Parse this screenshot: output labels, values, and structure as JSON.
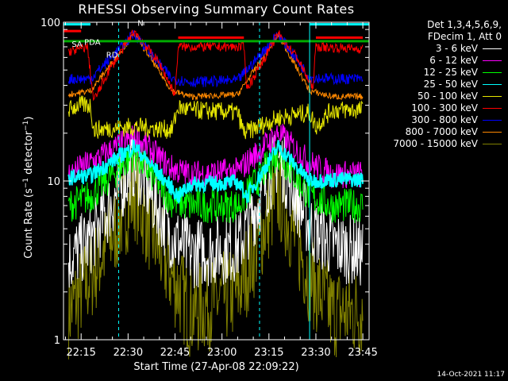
{
  "chart_data": {
    "type": "line",
    "title": "RHESSI Observing Summary Count Rates",
    "xlabel": "Start Time (27-Apr-08 22:09:22)",
    "ylabel_main": "Count Rate (s",
    "ylabel_sup": "−1",
    "ylabel_rest": " detector",
    "ylabel_close": ")",
    "y_scale": "log",
    "ylim": [
      1,
      100
    ],
    "y_ticks": [
      "1",
      "10",
      "100"
    ],
    "xlim": [
      "22:09:22",
      "23:47:00"
    ],
    "x_ticks": [
      "22:15",
      "22:30",
      "22:45",
      "23:00",
      "23:15",
      "23:30",
      "23:45"
    ],
    "grid": false,
    "legend_position": "right",
    "legend_header": [
      "Det 1,3,4,5,6,9,",
      "FDecim 1, Att 0"
    ],
    "annotations": [
      "RD",
      "SA",
      "N",
      "PDA"
    ],
    "series": [
      {
        "name": "3 - 6 keV",
        "color": "#ffffff",
        "key": [
          [
            "22:11",
            3.2
          ],
          [
            "22:18",
            4.2
          ],
          [
            "22:32",
            13
          ],
          [
            "22:44",
            4.5
          ],
          [
            "22:50",
            3.5
          ],
          [
            "23:05",
            3.8
          ],
          [
            "23:18",
            14
          ],
          [
            "23:28",
            5.2
          ],
          [
            "23:35",
            4
          ],
          [
            "23:45",
            3.5
          ]
        ]
      },
      {
        "name": "6 - 12 keV",
        "color": "#ff00ff",
        "key": [
          [
            "22:11",
            11
          ],
          [
            "22:18",
            13
          ],
          [
            "22:32",
            19
          ],
          [
            "22:44",
            12
          ],
          [
            "22:50",
            11
          ],
          [
            "23:05",
            11.5
          ],
          [
            "23:18",
            20
          ],
          [
            "23:28",
            13
          ],
          [
            "23:35",
            11
          ],
          [
            "23:45",
            11
          ]
        ]
      },
      {
        "name": "12 - 25 keV",
        "color": "#00ff00",
        "key": [
          [
            "22:11",
            7
          ],
          [
            "22:18",
            8
          ],
          [
            "22:32",
            15
          ],
          [
            "22:44",
            7.5
          ],
          [
            "22:50",
            7
          ],
          [
            "23:05",
            7
          ],
          [
            "23:18",
            15
          ],
          [
            "23:28",
            8
          ],
          [
            "23:35",
            7
          ],
          [
            "23:45",
            7
          ]
        ]
      },
      {
        "name": "25 - 50 keV",
        "color": "#00ffff",
        "key": [
          [
            "22:11",
            10.5
          ],
          [
            "22:18",
            10.8
          ],
          [
            "22:32",
            16.5
          ],
          [
            "22:44",
            9
          ],
          [
            "22:46",
            8
          ],
          [
            "22:50",
            9.5
          ],
          [
            "23:05",
            9.8
          ],
          [
            "23:08",
            8
          ],
          [
            "23:18",
            16.5
          ],
          [
            "23:28",
            10
          ],
          [
            "23:35",
            10.2
          ],
          [
            "23:45",
            10.2
          ]
        ]
      },
      {
        "name": "50 - 100 keV",
        "color": "#e6e600",
        "key": [
          [
            "22:11",
            28
          ],
          [
            "22:14",
            30
          ],
          [
            "22:18",
            30
          ],
          [
            "22:19",
            21
          ],
          [
            "22:32",
            22
          ],
          [
            "22:44",
            21
          ],
          [
            "22:46",
            29
          ],
          [
            "22:50",
            28
          ],
          [
            "23:05",
            27
          ],
          [
            "23:07",
            20
          ],
          [
            "23:18",
            25
          ],
          [
            "23:28",
            27
          ],
          [
            "23:30",
            22
          ],
          [
            "23:35",
            28
          ],
          [
            "23:45",
            28
          ]
        ]
      },
      {
        "name": "100 - 300 keV",
        "color": "#ff0000",
        "key": [
          [
            "22:11",
            65
          ],
          [
            "22:17",
            70
          ],
          [
            "22:19",
            32
          ],
          [
            "22:24",
            50
          ],
          [
            "22:32",
            88
          ],
          [
            "22:40",
            55
          ],
          [
            "22:45",
            35
          ],
          [
            "22:46",
            70
          ],
          [
            "23:07",
            70
          ],
          [
            "23:08",
            38
          ],
          [
            "23:18",
            85
          ],
          [
            "23:24",
            60
          ],
          [
            "23:29",
            38
          ],
          [
            "23:30",
            70
          ],
          [
            "23:45",
            68
          ]
        ]
      },
      {
        "name": "300 - 800 keV",
        "color": "#0000ff",
        "key": [
          [
            "22:11",
            44
          ],
          [
            "22:18",
            44
          ],
          [
            "22:32",
            85
          ],
          [
            "22:44",
            44
          ],
          [
            "22:50",
            42
          ],
          [
            "23:05",
            43
          ],
          [
            "23:18",
            84
          ],
          [
            "23:28",
            45
          ],
          [
            "23:35",
            44
          ],
          [
            "23:45",
            44
          ]
        ]
      },
      {
        "name": "800 - 7000 keV",
        "color": "#ff8800",
        "key": [
          [
            "22:11",
            35
          ],
          [
            "22:18",
            37
          ],
          [
            "22:32",
            85
          ],
          [
            "22:44",
            37
          ],
          [
            "22:50",
            34
          ],
          [
            "23:05",
            35
          ],
          [
            "23:18",
            83
          ],
          [
            "23:28",
            37
          ],
          [
            "23:35",
            34
          ],
          [
            "23:45",
            34
          ]
        ]
      },
      {
        "name": "7000 - 15000 keV",
        "color": "#808000",
        "key": [
          [
            "22:11",
            1.5
          ],
          [
            "22:18",
            2.5
          ],
          [
            "22:32",
            8.5
          ],
          [
            "22:44",
            2.5
          ],
          [
            "22:50",
            1.5
          ],
          [
            "23:05",
            2
          ],
          [
            "23:18",
            8.5
          ],
          [
            "23:28",
            2.5
          ],
          [
            "23:35",
            1.5
          ],
          [
            "23:45",
            1.5
          ]
        ]
      }
    ],
    "flag_lines": [
      {
        "color": "#00ffff",
        "style": "solid",
        "segments": [
          [
            [
              [
                "22:09:22",
                97
              ],
              [
                "22:18",
                97
              ]
            ]
          ],
          [
            [
              [
                "23:28",
                97
              ],
              [
                "23:47",
                97
              ]
            ]
          ]
        ]
      },
      {
        "color": "#00aa00",
        "style": "solid",
        "segments": [
          [
            [
              [
                "22:09:22",
                76
              ],
              [
                "23:47",
                76
              ]
            ]
          ]
        ]
      },
      {
        "color": "#ff0000",
        "style": "solid",
        "segments": [
          [
            [
              [
                "22:09:22",
                88
              ],
              [
                "22:15",
                88
              ]
            ]
          ],
          [
            [
              [
                "22:46",
                80
              ],
              [
                "23:07",
                80
              ]
            ]
          ],
          [
            [
              [
                "23:30",
                80
              ],
              [
                "23:45",
                80
              ]
            ]
          ]
        ]
      }
    ],
    "vlines": [
      {
        "color": "#00ffff",
        "style": "dashed",
        "x": "22:27"
      },
      {
        "color": "#00ffff",
        "style": "dashed",
        "x": "23:12"
      },
      {
        "color": "#00ffff",
        "style": "dashed",
        "x": "23:47"
      },
      {
        "color": "#00ffff",
        "style": "solid",
        "x": "23:28"
      },
      {
        "color": "#00ffff",
        "style": "solid",
        "x": "22:09:22"
      }
    ]
  },
  "footer": {
    "timestamp": "14-Oct-2021 11:17"
  }
}
